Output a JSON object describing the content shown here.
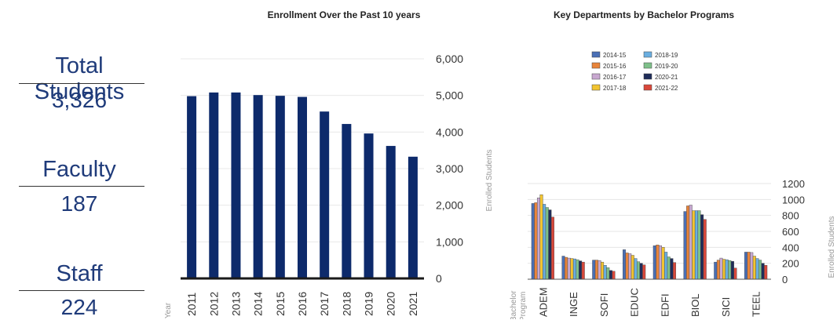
{
  "stats": {
    "total_students_label": "Total Students",
    "total_students_value": "3,326",
    "faculty_label": "Faculty",
    "faculty_value": "187",
    "staff_label": "Staff",
    "staff_value": "224"
  },
  "colors": {
    "stat_text": "#1f3b7a",
    "bar": "#0d2a6b",
    "baseline": "#1a1a1a"
  },
  "chart_data": [
    {
      "type": "bar",
      "title": "Enrollment Over the Past 10 years",
      "xlabel": "Year",
      "ylabel": "Enrolled Students",
      "categories": [
        "2011",
        "2012",
        "2013",
        "2014",
        "2015",
        "2016",
        "2017",
        "2018",
        "2019",
        "2020",
        "2021"
      ],
      "values": [
        4980,
        5080,
        5080,
        5010,
        4990,
        4960,
        4560,
        4220,
        3960,
        3620,
        3326
      ],
      "ylim": [
        0,
        6000
      ],
      "yticks": [
        "0",
        "1,000",
        "2,000",
        "3,000",
        "4,000",
        "5,000",
        "6,000"
      ],
      "yaxis_side": "right",
      "grid": true
    },
    {
      "type": "bar",
      "title": "Key Departments by Bachelor Programs",
      "xlabel": "Bachelor Program",
      "ylabel": "Enrolled Students",
      "categories": [
        "ADEM",
        "INGE",
        "SOFI",
        "EDUC",
        "EDFI",
        "BIOL",
        "SICI",
        "TEEL"
      ],
      "series": [
        {
          "name": "2014-15",
          "color": "#4a6fb5",
          "values": [
            950,
            290,
            240,
            370,
            420,
            850,
            215,
            340
          ]
        },
        {
          "name": "2015-16",
          "color": "#e8843a",
          "values": [
            960,
            275,
            240,
            330,
            430,
            920,
            240,
            340
          ]
        },
        {
          "name": "2016-17",
          "color": "#c8a8d0",
          "values": [
            1020,
            265,
            235,
            320,
            420,
            930,
            265,
            335
          ]
        },
        {
          "name": "2017-18",
          "color": "#f2c430",
          "values": [
            1060,
            260,
            215,
            300,
            400,
            860,
            250,
            290
          ]
        },
        {
          "name": "2018-19",
          "color": "#6aaee0",
          "values": [
            940,
            255,
            175,
            260,
            340,
            860,
            245,
            260
          ]
        },
        {
          "name": "2019-20",
          "color": "#7ec08a",
          "values": [
            900,
            245,
            145,
            220,
            280,
            860,
            235,
            240
          ]
        },
        {
          "name": "2020-21",
          "color": "#1f2d5a",
          "values": [
            870,
            230,
            110,
            200,
            260,
            810,
            225,
            200
          ]
        },
        {
          "name": "2021-22",
          "color": "#d9483b",
          "values": [
            780,
            215,
            100,
            180,
            210,
            750,
            140,
            175
          ]
        }
      ],
      "ylim": [
        0,
        1200
      ],
      "yticks": [
        "0",
        "200",
        "400",
        "600",
        "800",
        "1000",
        "1200"
      ],
      "yaxis_side": "right",
      "grid": true,
      "legend": "top-center"
    }
  ]
}
